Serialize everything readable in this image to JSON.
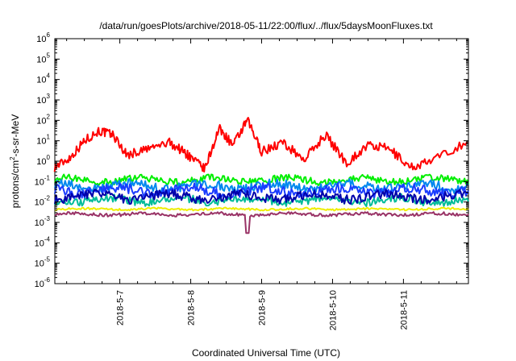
{
  "chart_data": {
    "type": "line",
    "title": "/data/run/goesPlots/archive/2018-05-11/22:00/flux/../flux/5daysMoonFluxes.txt",
    "xlabel": "Coordinated Universal Time (UTC)",
    "ylabel": "protons/cm2-s-sr-MeV",
    "ylabel_parts": {
      "base": "protons/cm",
      "sup": "2",
      "rest": "-s-sr-MeV"
    },
    "y_scale": "log",
    "ylim": [
      1e-06,
      1000000.0
    ],
    "y_ticks": [
      {
        "base": "10",
        "exp": "-6",
        "value": -6
      },
      {
        "base": "10",
        "exp": "-5",
        "value": -5
      },
      {
        "base": "10",
        "exp": "-4",
        "value": -4
      },
      {
        "base": "10",
        "exp": "-3",
        "value": -3
      },
      {
        "base": "10",
        "exp": "-2",
        "value": -2
      },
      {
        "base": "10",
        "exp": "-1",
        "value": -1
      },
      {
        "base": "10",
        "exp": "0",
        "value": 0
      },
      {
        "base": "10",
        "exp": "1",
        "value": 1
      },
      {
        "base": "10",
        "exp": "2",
        "value": 2
      },
      {
        "base": "10",
        "exp": "3",
        "value": 3
      },
      {
        "base": "10",
        "exp": "4",
        "value": 4
      },
      {
        "base": "10",
        "exp": "5",
        "value": 5
      },
      {
        "base": "10",
        "exp": "6",
        "value": 6
      }
    ],
    "x_range": [
      "2018-05-06T02:00",
      "2018-05-11T22:00"
    ],
    "x_ticks": [
      {
        "label": "2018-5-7",
        "day": 7
      },
      {
        "label": "2018-5-8",
        "day": 8
      },
      {
        "label": "2018-5-9",
        "day": 9
      },
      {
        "label": "2018-5-10",
        "day": 10
      },
      {
        "label": "2018-5-11",
        "day": 11
      }
    ],
    "grid": false,
    "legend": "none",
    "series": [
      {
        "color": "#ff0000",
        "base": 8,
        "amp": 0.6,
        "x": [
          6.08,
          6.3,
          6.5,
          6.7,
          6.9,
          7.1,
          7.4,
          7.7,
          7.9,
          8.0,
          8.2,
          8.4,
          8.6,
          8.8,
          9.0,
          9.3,
          9.6,
          9.9,
          10.2,
          10.5,
          10.8,
          11.1,
          11.4,
          11.9
        ],
        "y": [
          0.5,
          1.5,
          10,
          30,
          20,
          2,
          4,
          8,
          3,
          1.5,
          0.4,
          40,
          6,
          100,
          3,
          8,
          1.2,
          20,
          0.8,
          6,
          4,
          0.5,
          1,
          9
        ]
      },
      {
        "color": "#00ee00",
        "base": 0.12,
        "amp": 0.35
      },
      {
        "color": "#0088ee",
        "base": 0.06,
        "amp": 0.45
      },
      {
        "color": "#1a3cff",
        "base": 0.035,
        "amp": 0.5
      },
      {
        "color": "#00bb99",
        "base": 0.012,
        "amp": 0.4
      },
      {
        "color": "#0000aa",
        "base": 0.018,
        "amp": 0.45
      },
      {
        "color": "#eeee00",
        "base": 0.0045,
        "amp": 0.1
      },
      {
        "color": "#993366",
        "base": 0.0025,
        "amp": 0.15
      }
    ]
  }
}
